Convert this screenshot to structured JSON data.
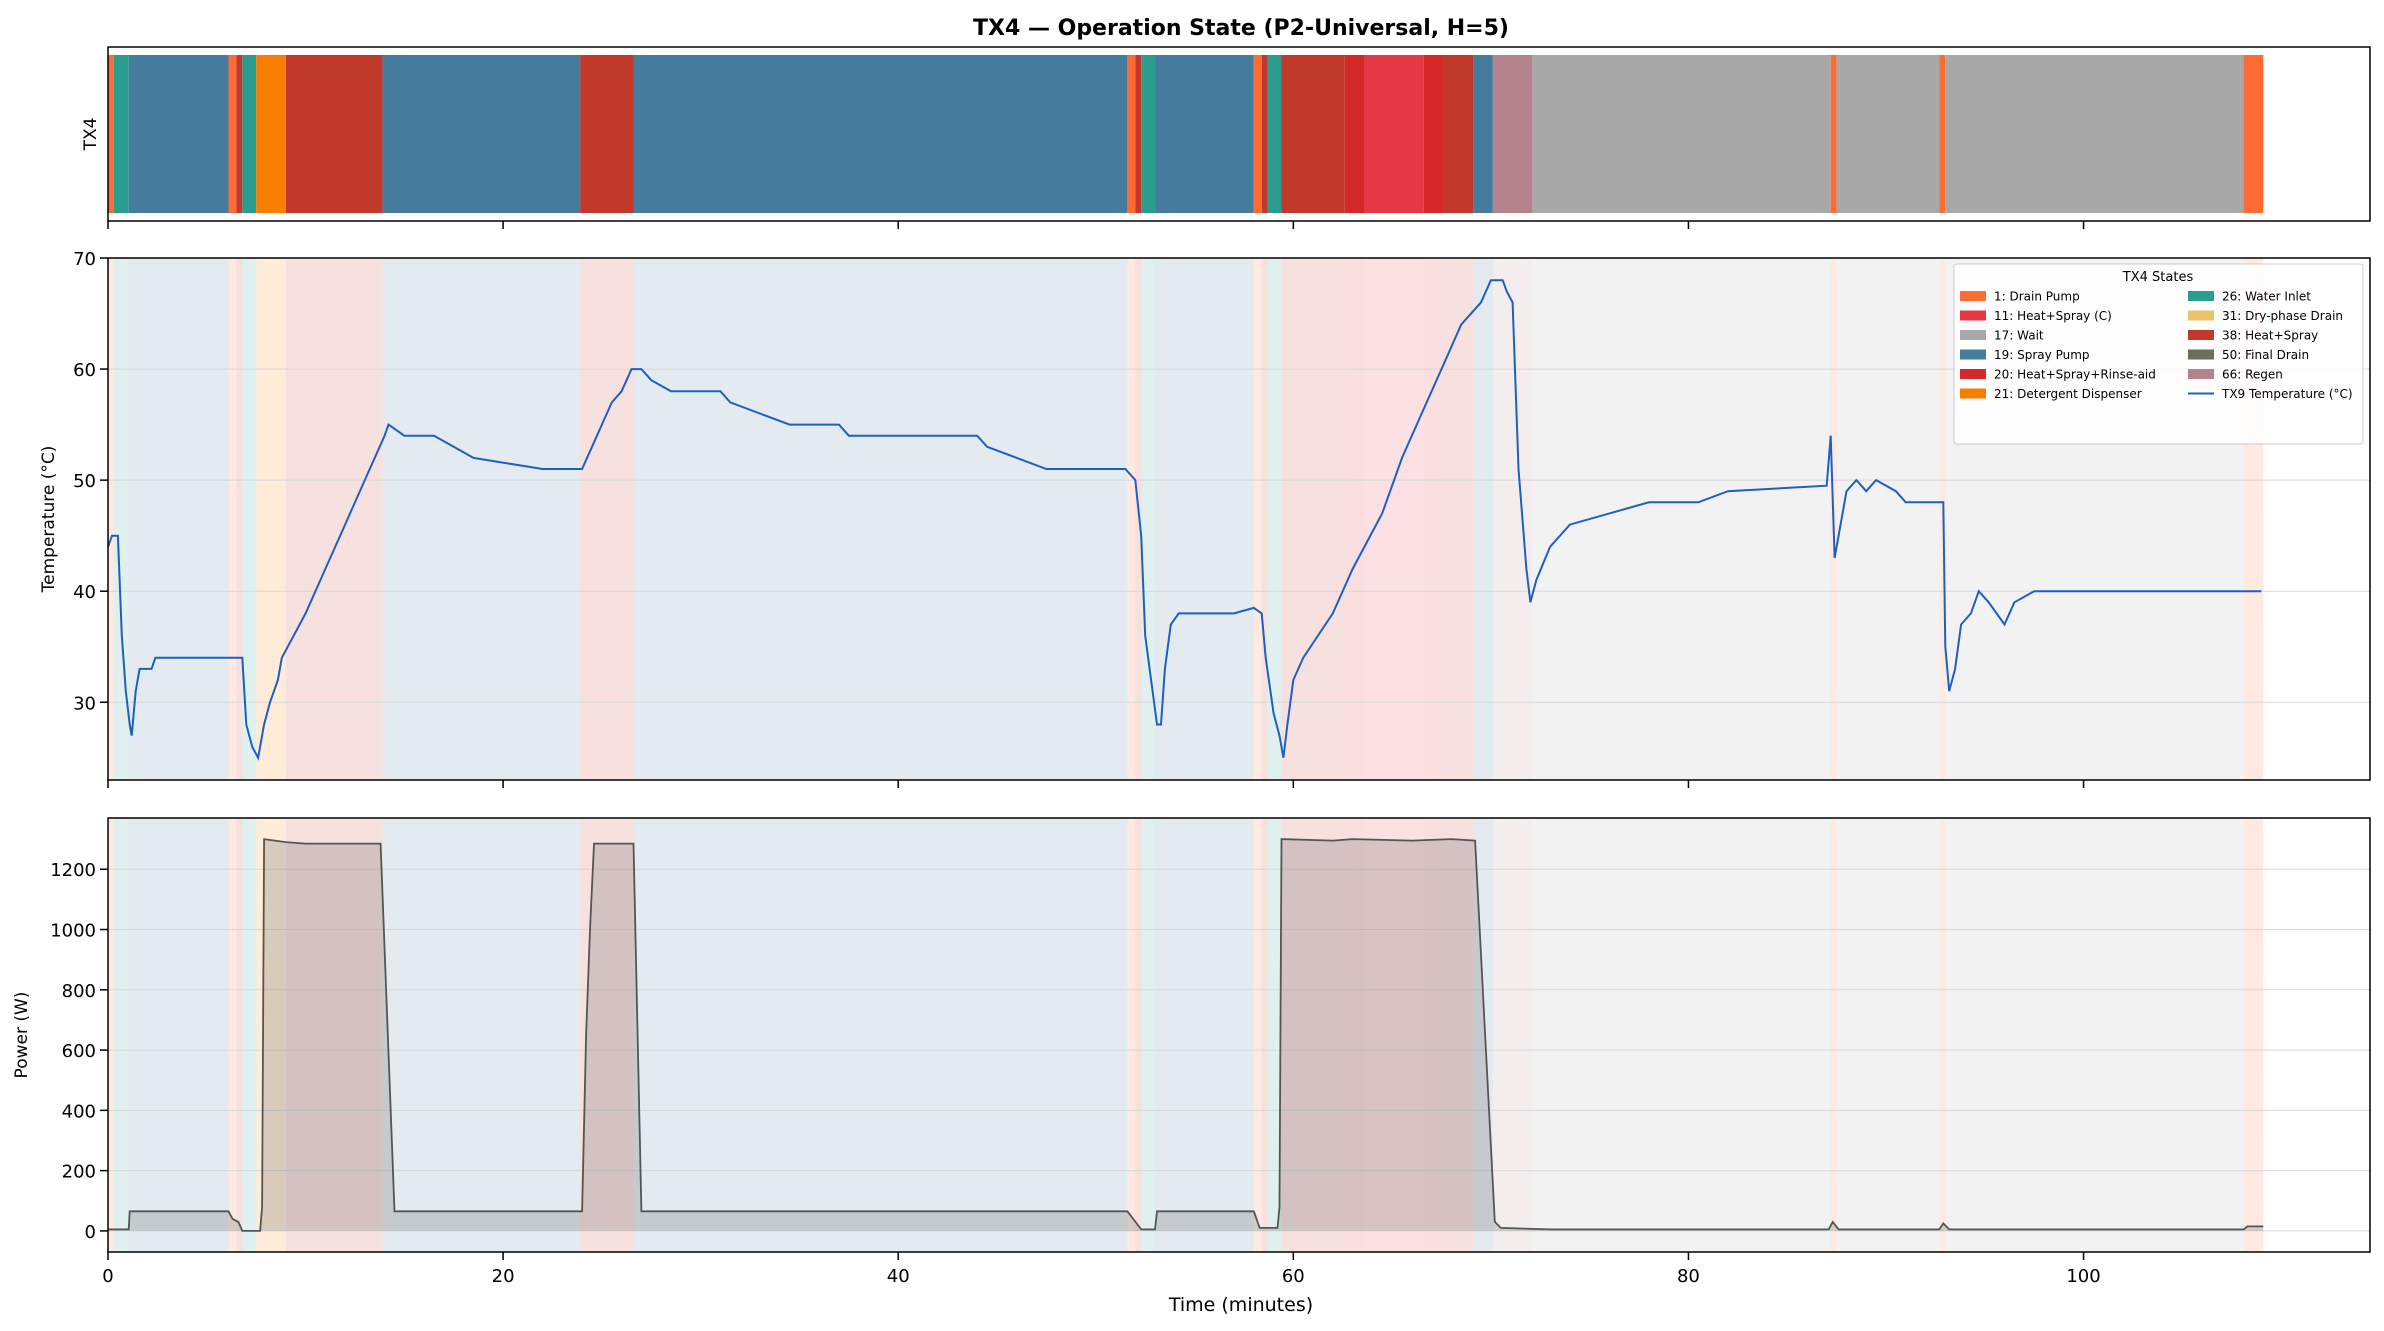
{
  "figure": {
    "title": "TX4 — Operation State (P2-Universal, H=5)",
    "xlabel": "Time (minutes)"
  },
  "chart_data": [
    {
      "id": "state-strip",
      "type": "timeline",
      "ylabel": "TX4",
      "xlim": [
        0,
        114.5
      ],
      "x_ticks": [
        0,
        20,
        40,
        60,
        80,
        100
      ],
      "segments": [
        {
          "start": 0.0,
          "end": 0.3,
          "state": 1
        },
        {
          "start": 0.3,
          "end": 1.05,
          "state": 26
        },
        {
          "start": 1.05,
          "end": 6.1,
          "state": 19
        },
        {
          "start": 6.1,
          "end": 6.5,
          "state": 1
        },
        {
          "start": 6.5,
          "end": 6.8,
          "state": 38
        },
        {
          "start": 6.8,
          "end": 7.5,
          "state": 26
        },
        {
          "start": 7.5,
          "end": 9.0,
          "state": 21
        },
        {
          "start": 9.0,
          "end": 13.9,
          "state": 38
        },
        {
          "start": 13.9,
          "end": 23.9,
          "state": 19
        },
        {
          "start": 23.9,
          "end": 26.6,
          "state": 38
        },
        {
          "start": 26.6,
          "end": 51.6,
          "state": 19
        },
        {
          "start": 51.6,
          "end": 52.0,
          "state": 1
        },
        {
          "start": 52.0,
          "end": 52.3,
          "state": 38
        },
        {
          "start": 52.3,
          "end": 53.0,
          "state": 26
        },
        {
          "start": 53.0,
          "end": 58.0,
          "state": 19
        },
        {
          "start": 58.0,
          "end": 58.4,
          "state": 1
        },
        {
          "start": 58.4,
          "end": 58.7,
          "state": 38
        },
        {
          "start": 58.7,
          "end": 59.4,
          "state": 26
        },
        {
          "start": 59.4,
          "end": 62.6,
          "state": 38
        },
        {
          "start": 62.6,
          "end": 63.6,
          "state": 20
        },
        {
          "start": 63.6,
          "end": 66.6,
          "state": 11
        },
        {
          "start": 66.6,
          "end": 67.6,
          "state": 20
        },
        {
          "start": 67.6,
          "end": 69.1,
          "state": 38
        },
        {
          "start": 69.1,
          "end": 70.1,
          "state": 19
        },
        {
          "start": 70.1,
          "end": 72.1,
          "state": 66
        },
        {
          "start": 72.1,
          "end": 87.2,
          "state": 17
        },
        {
          "start": 87.2,
          "end": 87.5,
          "state": 1
        },
        {
          "start": 87.5,
          "end": 92.7,
          "state": 17
        },
        {
          "start": 92.7,
          "end": 93.0,
          "state": 1
        },
        {
          "start": 93.0,
          "end": 108.1,
          "state": 17
        },
        {
          "start": 108.1,
          "end": 109.1,
          "state": 1
        }
      ]
    },
    {
      "id": "temperature",
      "type": "line",
      "ylabel": "Temperature (°C)",
      "xlim": [
        0,
        114.5
      ],
      "ylim": [
        23,
        70
      ],
      "y_ticks": [
        30,
        40,
        50,
        60,
        70
      ],
      "x_ticks": [
        0,
        20,
        40,
        60,
        80,
        100
      ],
      "series": [
        {
          "name": "TX9 Temperature (°C)",
          "color": "#1f5fbf",
          "points": [
            [
              0,
              44
            ],
            [
              0.2,
              45
            ],
            [
              0.5,
              45
            ],
            [
              0.7,
              36
            ],
            [
              0.9,
              31
            ],
            [
              1.1,
              28
            ],
            [
              1.2,
              27
            ],
            [
              1.4,
              31
            ],
            [
              1.6,
              33
            ],
            [
              2.2,
              33
            ],
            [
              2.4,
              34
            ],
            [
              6.8,
              34
            ],
            [
              7.0,
              28
            ],
            [
              7.3,
              26
            ],
            [
              7.6,
              25
            ],
            [
              7.9,
              28
            ],
            [
              8.2,
              30
            ],
            [
              8.6,
              32
            ],
            [
              8.8,
              34
            ],
            [
              10.0,
              38
            ],
            [
              11.0,
              42
            ],
            [
              12.0,
              46
            ],
            [
              13.0,
              50
            ],
            [
              14.0,
              54
            ],
            [
              14.2,
              55
            ],
            [
              15.0,
              54
            ],
            [
              16.5,
              54
            ],
            [
              17.5,
              53
            ],
            [
              18.5,
              52
            ],
            [
              22.0,
              51
            ],
            [
              24.0,
              51
            ],
            [
              24.5,
              53
            ],
            [
              25.0,
              55
            ],
            [
              25.5,
              57
            ],
            [
              26.0,
              58
            ],
            [
              26.5,
              60
            ],
            [
              27.0,
              60
            ],
            [
              27.5,
              59
            ],
            [
              28.5,
              58
            ],
            [
              31.0,
              58
            ],
            [
              31.5,
              57
            ],
            [
              33.0,
              56
            ],
            [
              34.5,
              55
            ],
            [
              37.0,
              55
            ],
            [
              37.5,
              54
            ],
            [
              44.0,
              54
            ],
            [
              44.5,
              53
            ],
            [
              46.0,
              52
            ],
            [
              47.5,
              51
            ],
            [
              51.5,
              51
            ],
            [
              52.0,
              50
            ],
            [
              52.3,
              45
            ],
            [
              52.5,
              36
            ],
            [
              52.8,
              32
            ],
            [
              53.1,
              28
            ],
            [
              53.3,
              28
            ],
            [
              53.5,
              33
            ],
            [
              53.8,
              37
            ],
            [
              54.2,
              38
            ],
            [
              57.0,
              38
            ],
            [
              58.0,
              38.5
            ],
            [
              58.4,
              38
            ],
            [
              58.6,
              34
            ],
            [
              59.0,
              29
            ],
            [
              59.3,
              27
            ],
            [
              59.5,
              25
            ],
            [
              59.7,
              28
            ],
            [
              60.0,
              32
            ],
            [
              60.5,
              34
            ],
            [
              62.0,
              38
            ],
            [
              63.0,
              42
            ],
            [
              64.5,
              47
            ],
            [
              65.5,
              52
            ],
            [
              66.5,
              56
            ],
            [
              67.5,
              60
            ],
            [
              68.5,
              64
            ],
            [
              69.5,
              66
            ],
            [
              70.0,
              68
            ],
            [
              70.6,
              68
            ],
            [
              70.8,
              67
            ],
            [
              71.1,
              66
            ],
            [
              71.4,
              51
            ],
            [
              71.8,
              42
            ],
            [
              72.0,
              39
            ],
            [
              72.3,
              41
            ],
            [
              73.0,
              44
            ],
            [
              74.0,
              46
            ],
            [
              76.0,
              47
            ],
            [
              78.0,
              48
            ],
            [
              80.5,
              48
            ],
            [
              82.0,
              49
            ],
            [
              87.0,
              49.5
            ],
            [
              87.2,
              54
            ],
            [
              87.4,
              43
            ],
            [
              87.6,
              45
            ],
            [
              88.0,
              49
            ],
            [
              88.5,
              50
            ],
            [
              89.0,
              49
            ],
            [
              89.5,
              50
            ],
            [
              90.5,
              49
            ],
            [
              91.0,
              48
            ],
            [
              92.9,
              48
            ],
            [
              93.0,
              35
            ],
            [
              93.2,
              31
            ],
            [
              93.5,
              33
            ],
            [
              93.8,
              37
            ],
            [
              94.3,
              38
            ],
            [
              94.7,
              40
            ],
            [
              95.2,
              39
            ],
            [
              96.0,
              37
            ],
            [
              96.5,
              39
            ],
            [
              97.5,
              40
            ],
            [
              109.0,
              40
            ]
          ]
        }
      ],
      "legend": {
        "title": "TX4 States",
        "position": "top-right",
        "entries": [
          {
            "label": "1: Drain Pump",
            "color": "#ff6b35"
          },
          {
            "label": "11: Heat+Spray (C)",
            "color": "#e63946"
          },
          {
            "label": "17: Wait",
            "color": "#a8a8a8"
          },
          {
            "label": "19: Spray Pump",
            "color": "#457b9d"
          },
          {
            "label": "20: Heat+Spray+Rinse-aid",
            "color": "#d62828"
          },
          {
            "label": "21: Detergent Dispenser",
            "color": "#f77f00"
          },
          {
            "label": "26: Water Inlet",
            "color": "#2a9d8f"
          },
          {
            "label": "31: Dry-phase Drain",
            "color": "#e9c46a"
          },
          {
            "label": "38: Heat+Spray",
            "color": "#c0392b"
          },
          {
            "label": "50: Final Drain",
            "color": "#6b705c"
          },
          {
            "label": "66: Regen",
            "color": "#b5838d"
          },
          {
            "label": "TX9 Temperature (°C)",
            "color": "#1f5fbf",
            "kind": "line"
          }
        ]
      }
    },
    {
      "id": "power",
      "type": "area",
      "ylabel": "Power (W)",
      "xlim": [
        0,
        114.5
      ],
      "ylim": [
        -70,
        1370
      ],
      "y_ticks": [
        0,
        200,
        400,
        600,
        800,
        1000,
        1200
      ],
      "x_ticks": [
        0,
        20,
        40,
        60,
        80,
        100
      ],
      "x_tick_labels": [
        "0",
        "20",
        "40",
        "60",
        "80",
        "100"
      ],
      "series": [
        {
          "name": "Power",
          "color": "#555555",
          "points": [
            [
              0,
              5
            ],
            [
              1.05,
              5
            ],
            [
              1.1,
              65
            ],
            [
              6.1,
              65
            ],
            [
              6.3,
              40
            ],
            [
              6.6,
              30
            ],
            [
              6.8,
              0
            ],
            [
              7.7,
              0
            ],
            [
              7.8,
              80
            ],
            [
              7.9,
              1300
            ],
            [
              9.0,
              1290
            ],
            [
              10.0,
              1285
            ],
            [
              13.8,
              1285
            ],
            [
              14.5,
              65
            ],
            [
              24.0,
              65
            ],
            [
              24.2,
              650
            ],
            [
              24.4,
              1000
            ],
            [
              24.6,
              1285
            ],
            [
              26.6,
              1285
            ],
            [
              27.0,
              65
            ],
            [
              51.6,
              65
            ],
            [
              52.3,
              5
            ],
            [
              53.0,
              5
            ],
            [
              53.1,
              65
            ],
            [
              58.0,
              65
            ],
            [
              58.3,
              10
            ],
            [
              59.2,
              10
            ],
            [
              59.3,
              80
            ],
            [
              59.4,
              1300
            ],
            [
              62.0,
              1295
            ],
            [
              63.0,
              1300
            ],
            [
              66.0,
              1295
            ],
            [
              68.0,
              1300
            ],
            [
              69.2,
              1295
            ],
            [
              70.2,
              30
            ],
            [
              70.5,
              10
            ],
            [
              73.0,
              5
            ],
            [
              87.1,
              5
            ],
            [
              87.3,
              30
            ],
            [
              87.6,
              5
            ],
            [
              92.7,
              5
            ],
            [
              92.9,
              25
            ],
            [
              93.2,
              5
            ],
            [
              108.1,
              5
            ],
            [
              108.3,
              15
            ],
            [
              109.1,
              15
            ]
          ]
        }
      ]
    }
  ]
}
